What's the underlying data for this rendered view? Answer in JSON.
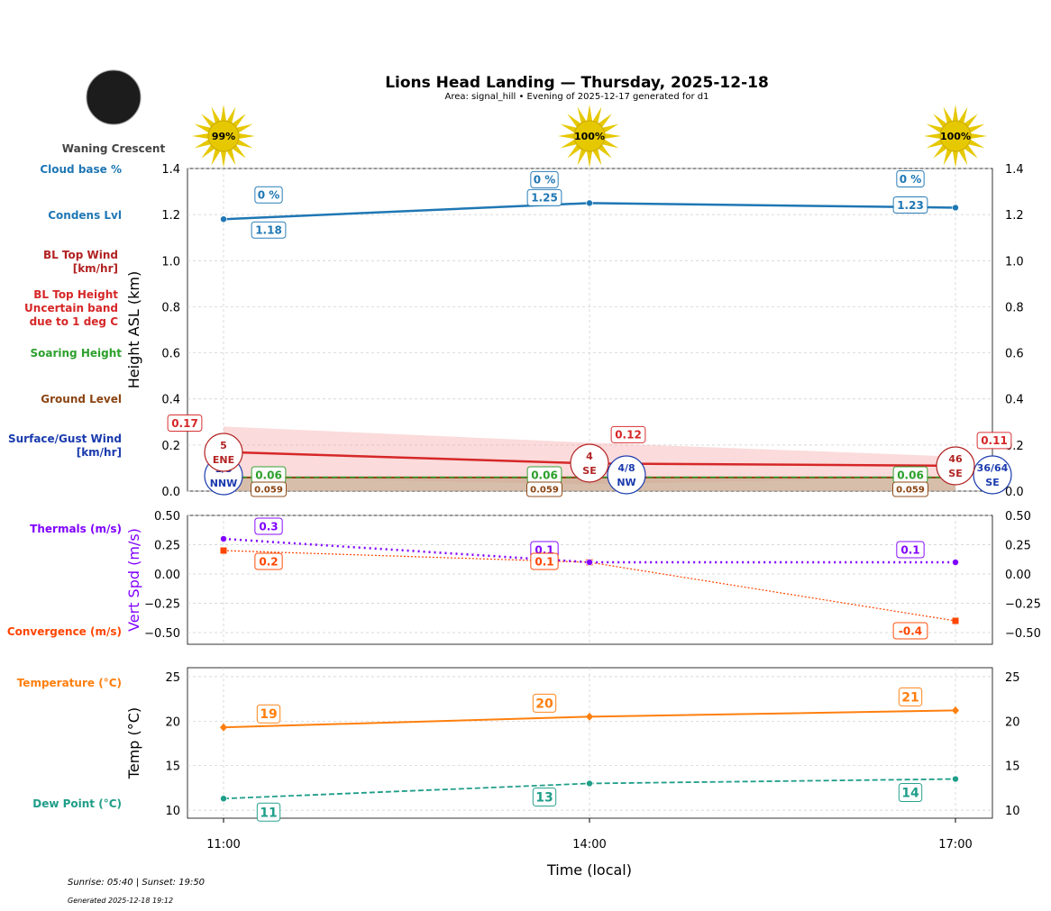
{
  "title": "Lions Head Landing — Thursday, 2025-12-18",
  "subtitle": "Area: signal_hill • Evening of 2025-12-17 generated for d1",
  "moon": {
    "phase": "Waning Crescent",
    "icon": "moon-icon"
  },
  "sun_icons": [
    "99%",
    "100%",
    "100%"
  ],
  "left_labels": [
    {
      "text": "Cloud base %",
      "color": "#1f77b4"
    },
    {
      "text": "Condens Lvl",
      "color": "#1f77b4"
    },
    {
      "text": "BL Top Wind [km/hr]",
      "color": "#b22222"
    },
    {
      "text": "BL Top Height Uncertain band due to 1 deg C",
      "color": "#d62728"
    },
    {
      "text": "Soaring Height",
      "color": "#2ca02c"
    },
    {
      "text": "Ground Level",
      "color": "#8b4513"
    },
    {
      "text": "Surface/Gust Wind [km/hr]",
      "color": "#1a3aad"
    },
    {
      "text": "Thermals (m/s)",
      "color": "#8000ff"
    },
    {
      "text": "Convergence (m/s)",
      "color": "#ff4500"
    },
    {
      "text": "Temperature (°C)",
      "color": "#ff7f0e"
    },
    {
      "text": "Dew Point (°C)",
      "color": "#1f9e89"
    }
  ],
  "footer": {
    "sun": "Sunrise: 05:40 | Sunset: 19:50",
    "generated": "Generated 2025-12-18 19:12"
  },
  "chart_data": [
    {
      "type": "line",
      "ylabel": "Height ASL (km)",
      "ylim": [
        0,
        1.4
      ],
      "yticks": [
        "0.0",
        "0.2",
        "0.4",
        "0.6",
        "0.8",
        "1.0",
        "1.2",
        "1.4"
      ],
      "x": [
        "11:00",
        "14:00",
        "17:00"
      ],
      "grid": true,
      "series": [
        {
          "name": "Condens Lvl",
          "values": [
            1.18,
            1.25,
            1.23
          ],
          "labels": [
            "1.18",
            "1.25",
            "1.23"
          ],
          "color": "#1f77b4"
        },
        {
          "name": "Cloud base %",
          "labels": [
            "0 %",
            "0 %",
            "0 %"
          ],
          "color": "#1f77b4"
        },
        {
          "name": "BL Top Height",
          "values": [
            0.17,
            0.12,
            0.11
          ],
          "labels": [
            "0.17",
            "0.12",
            "0.11"
          ],
          "color": "#d62728"
        },
        {
          "name": "Uncertain band",
          "upper": [
            0.28,
            0.21,
            0.15
          ],
          "lower": [
            0.06,
            0.03,
            0.06
          ],
          "color": "#f4a6a6"
        },
        {
          "name": "Soaring Height",
          "values": [
            0.06,
            0.06,
            0.06
          ],
          "labels": [
            "0.06",
            "0.06",
            "0.06"
          ],
          "color": "#2ca02c"
        },
        {
          "name": "Ground Level",
          "values": [
            0.059,
            0.059,
            0.059
          ],
          "labels": [
            "0.059",
            "0.059",
            "0.059"
          ],
          "color": "#8b4513"
        }
      ],
      "bl_wind": [
        {
          "speed": "5",
          "dir": "ENE"
        },
        {
          "speed": "4",
          "dir": "SE"
        },
        {
          "speed": "46",
          "dir": "SE"
        }
      ],
      "surface_wind": [
        {
          "speed": "1/3",
          "dir": "NNW"
        },
        {
          "speed": "4/8",
          "dir": "NW"
        },
        {
          "speed": "36/64",
          "dir": "SE"
        }
      ]
    },
    {
      "type": "line",
      "ylabel": "Vert Spd (m/s)",
      "ylim": [
        -0.6,
        0.5
      ],
      "yticks": [
        "−0.50",
        "−0.25",
        "0.00",
        "0.25",
        "0.50"
      ],
      "x": [
        "11:00",
        "14:00",
        "17:00"
      ],
      "series": [
        {
          "name": "Thermals (m/s)",
          "values": [
            0.3,
            0.1,
            0.1
          ],
          "labels": [
            "0.3",
            "0.1",
            "0.1"
          ],
          "color": "#8000ff"
        },
        {
          "name": "Convergence (m/s)",
          "values": [
            0.2,
            0.1,
            -0.4
          ],
          "labels": [
            "0.2",
            "0.1",
            "-0.4"
          ],
          "color": "#ff4500"
        }
      ]
    },
    {
      "type": "line",
      "ylabel": "Temp (°C)",
      "xlabel": "Time (local)",
      "ylim": [
        9.1,
        26
      ],
      "yticks": [
        "10",
        "15",
        "20",
        "25"
      ],
      "x": [
        "11:00",
        "14:00",
        "17:00"
      ],
      "series": [
        {
          "name": "Temperature (°C)",
          "values": [
            19.3,
            20.5,
            21.2
          ],
          "labels": [
            "19",
            "20",
            "21"
          ],
          "color": "#ff7f0e"
        },
        {
          "name": "Dew Point (°C)",
          "values": [
            11.3,
            13.0,
            13.5
          ],
          "labels": [
            "11",
            "13",
            "14"
          ],
          "color": "#1f9e89"
        }
      ]
    }
  ]
}
